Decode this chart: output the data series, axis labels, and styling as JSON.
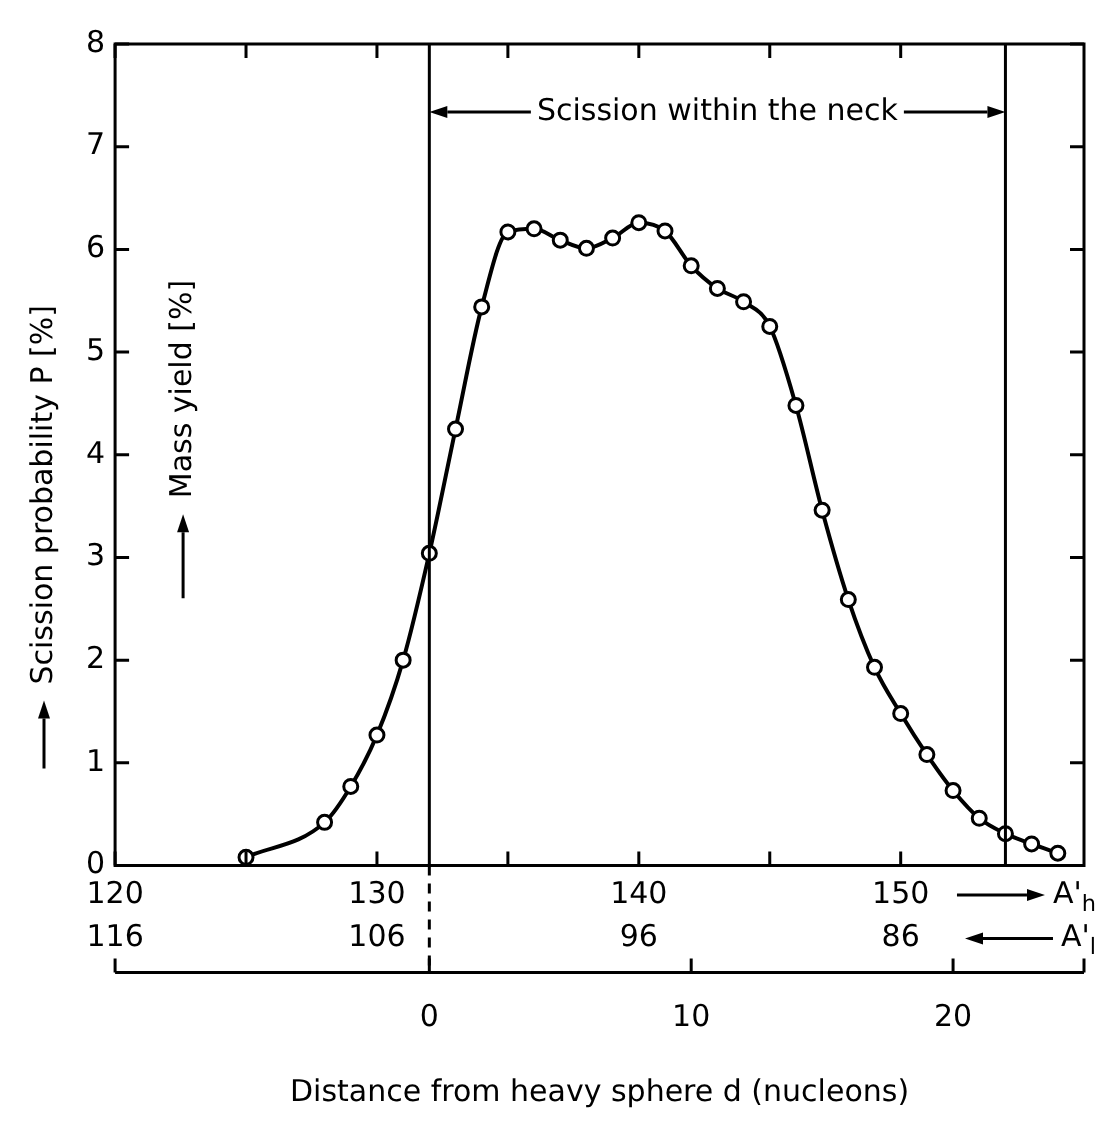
{
  "chart_data": {
    "type": "line",
    "xlabel": "Distance from heavy sphere d (nucleons)",
    "ylabel": "Scission probability P [%]",
    "x2label": "A'$_{h}$",
    "x": [
      -7,
      -4,
      -3,
      -2,
      -1,
      0,
      1,
      2,
      3,
      4,
      5,
      6,
      7,
      8,
      9,
      10,
      11,
      12,
      13,
      14,
      15,
      16,
      17,
      18,
      19,
      20,
      21,
      22,
      23,
      24
    ],
    "series": [
      {
        "color": "#000000",
        "values": [
          0.08,
          0.42,
          0.77,
          1.27,
          2.0,
          3.04,
          4.25,
          5.44,
          6.17,
          6.2,
          6.09,
          6.01,
          6.11,
          6.26,
          6.18,
          5.84,
          5.62,
          5.49,
          5.25,
          4.48,
          3.46,
          2.59,
          1.93,
          1.48,
          1.08,
          0.73,
          0.46,
          0.31,
          0.21,
          0.12
        ]
      }
    ],
    "marker": "circle",
    "line_style": "solid",
    "xlim": [
      -12,
      25
    ],
    "xticks": [
      0,
      10,
      20
    ],
    "x2lim": [
      120,
      157
    ],
    "x2ticks": [
      120,
      {
        "value": 125,
        "label": null
      },
      130,
      {
        "value": 135,
        "label": null
      },
      140,
      {
        "value": 145,
        "label": null
      },
      150
    ],
    "ylim": [
      0,
      8
    ],
    "yticks": [
      0,
      1,
      2,
      3,
      4,
      5,
      6,
      7,
      8
    ],
    "ref_lines": [
      {
        "axis": "x",
        "value": 0
      },
      {
        "axis": "x",
        "value": 22
      }
    ],
    "annotations": [
      "Scission within the neck",
      "Mass yield [%]",
      "116",
      "106",
      "96",
      "86",
      "A'$_{l}$"
    ]
  }
}
